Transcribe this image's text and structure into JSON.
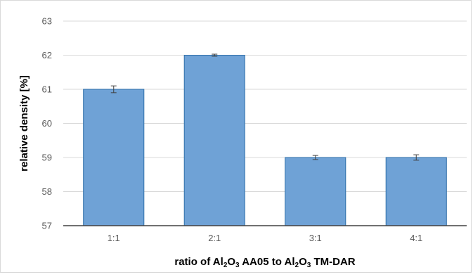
{
  "chart_data": {
    "type": "bar",
    "title": "",
    "categories": [
      "1:1",
      "2:1",
      "3:1",
      "4:1"
    ],
    "values": [
      61.0,
      62.0,
      59.0,
      59.0
    ],
    "error": [
      0.1,
      0.03,
      0.06,
      0.08
    ],
    "ylabel": "relative density [%]",
    "xlabel": {
      "parts": [
        {
          "text": "ratio of Al",
          "sub": false
        },
        {
          "text": "2",
          "sub": true
        },
        {
          "text": "O",
          "sub": false
        },
        {
          "text": "3",
          "sub": true
        },
        {
          "text": " AA05 to Al",
          "sub": false
        },
        {
          "text": "2",
          "sub": true
        },
        {
          "text": "O",
          "sub": false
        },
        {
          "text": "3",
          "sub": true
        },
        {
          "text": " TM-DAR",
          "sub": false
        }
      ]
    },
    "ylim": [
      57,
      63
    ],
    "yticks": [
      "57",
      "58",
      "59",
      "60",
      "61",
      "62",
      "63"
    ],
    "grid": true,
    "legend": "none",
    "colors": {
      "bar_fill": "#6fa2d6",
      "bar_stroke": "#2e6ea8",
      "grid": "#d9d9d9",
      "axis": "#404040",
      "error_bar": "#404040"
    }
  }
}
